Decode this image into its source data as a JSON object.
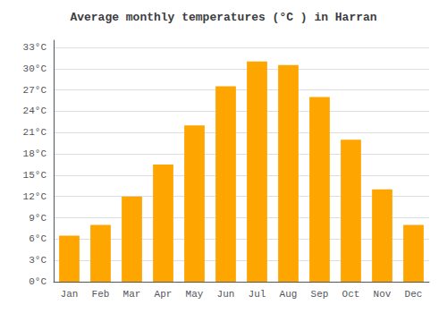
{
  "chart_data": {
    "type": "bar",
    "title": "Average monthly temperatures (°C ) in Harran",
    "categories": [
      "Jan",
      "Feb",
      "Mar",
      "Apr",
      "May",
      "Jun",
      "Jul",
      "Aug",
      "Sep",
      "Oct",
      "Nov",
      "Dec"
    ],
    "values": [
      6.5,
      8.0,
      12.0,
      16.5,
      22.0,
      27.5,
      31.0,
      30.5,
      26.0,
      20.0,
      13.0,
      8.0
    ],
    "color": "#FFA500",
    "ylim": [
      0,
      34
    ],
    "yticks": [
      {
        "value": 0,
        "label": "0°C"
      },
      {
        "value": 3,
        "label": "3°C"
      },
      {
        "value": 6,
        "label": "6°C"
      },
      {
        "value": 9,
        "label": "9°C"
      },
      {
        "value": 12,
        "label": "12°C"
      },
      {
        "value": 15,
        "label": "15°C"
      },
      {
        "value": 18,
        "label": "18°C"
      },
      {
        "value": 21,
        "label": "21°C"
      },
      {
        "value": 24,
        "label": "24°C"
      },
      {
        "value": 27,
        "label": "27°C"
      },
      {
        "value": 30,
        "label": "30°C"
      },
      {
        "value": 33,
        "label": "33°C"
      }
    ],
    "grid": true
  }
}
